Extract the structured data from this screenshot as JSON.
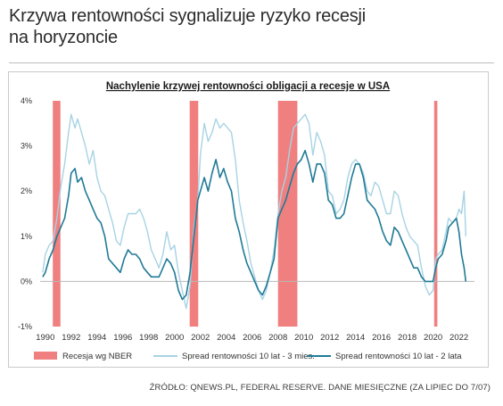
{
  "headline": {
    "line1": "Krzywa rentowności sygnalizuje ryzyko recesji",
    "line2": "na horyzoncie"
  },
  "source": "ŹRÓDŁO: QNEWS.PL, FEDERAL RESERVE. DANE MIESIĘCZNE (ZA LIPIEC DO 7/07)",
  "chart_data": {
    "type": "line",
    "title": "Nachylenie krzywej rentowności obligacji a recesje w USA",
    "xlabel": "",
    "ylabel": "",
    "xlim": [
      1989.6,
      2023.2
    ],
    "ylim": [
      -1,
      4
    ],
    "x_ticks": [
      "1990",
      "1992",
      "1994",
      "1996",
      "1998",
      "2000",
      "2002",
      "2004",
      "2006",
      "2008",
      "2010",
      "2012",
      "2014",
      "2016",
      "2018",
      "2020",
      "2022"
    ],
    "y_ticks": [
      "-1%",
      "0%",
      "1%",
      "2%",
      "3%",
      "4%"
    ],
    "grid": "none",
    "legend_position": "bottom",
    "colors": {
      "recession": "#f08080",
      "spread_3m": "#a7d3e3",
      "spread_2y": "#1f7a96"
    },
    "recessions": [
      {
        "start": 1990.58,
        "end": 1991.17
      },
      {
        "start": 2001.17,
        "end": 2001.83
      },
      {
        "start": 2008.0,
        "end": 2009.5
      },
      {
        "start": 2020.08,
        "end": 2020.33
      }
    ],
    "legend": [
      "Recesja wg NBER",
      "Spread rentowności 10 lat - 3 mies.",
      "Spread rentowności 10 lat - 2 lata"
    ],
    "series": [
      {
        "name": "Spread rentowności 10 lat - 3 mies.",
        "x": [
          1989.8,
          1990.0,
          1990.3,
          1990.6,
          1990.9,
          1991.2,
          1991.5,
          1991.8,
          1992.0,
          1992.3,
          1992.5,
          1992.8,
          1993.1,
          1993.4,
          1993.7,
          1994.0,
          1994.3,
          1994.6,
          1994.9,
          1995.2,
          1995.5,
          1995.8,
          1996.1,
          1996.4,
          1996.7,
          1997.0,
          1997.3,
          1997.6,
          1997.9,
          1998.2,
          1998.5,
          1998.8,
          1999.1,
          1999.4,
          1999.7,
          2000.0,
          2000.3,
          2000.6,
          2000.9,
          2001.2,
          2001.5,
          2001.8,
          2002.0,
          2002.3,
          2002.6,
          2002.9,
          2003.2,
          2003.5,
          2003.8,
          2004.1,
          2004.4,
          2004.7,
          2005.0,
          2005.3,
          2005.6,
          2005.9,
          2006.2,
          2006.5,
          2006.8,
          2007.1,
          2007.4,
          2007.7,
          2008.0,
          2008.3,
          2008.6,
          2008.9,
          2009.2,
          2009.5,
          2009.8,
          2010.1,
          2010.4,
          2010.7,
          2011.0,
          2011.3,
          2011.6,
          2011.9,
          2012.2,
          2012.5,
          2012.8,
          2013.1,
          2013.4,
          2013.7,
          2014.0,
          2014.3,
          2014.6,
          2014.9,
          2015.2,
          2015.5,
          2015.8,
          2016.1,
          2016.4,
          2016.7,
          2017.0,
          2017.3,
          2017.6,
          2017.9,
          2018.2,
          2018.5,
          2018.8,
          2019.1,
          2019.4,
          2019.7,
          2020.0,
          2020.2,
          2020.4,
          2020.7,
          2021.0,
          2021.2,
          2021.5,
          2021.8,
          2022.0,
          2022.2,
          2022.4,
          2022.53
        ],
        "values": [
          0.2,
          0.6,
          0.8,
          0.9,
          1.4,
          2.1,
          2.6,
          3.3,
          3.7,
          3.4,
          3.6,
          3.3,
          3.0,
          2.6,
          2.9,
          2.3,
          2.0,
          1.9,
          1.6,
          1.3,
          0.9,
          0.8,
          1.2,
          1.5,
          1.5,
          1.5,
          1.6,
          1.4,
          1.1,
          0.7,
          0.5,
          0.3,
          0.6,
          1.1,
          0.7,
          0.8,
          0.2,
          -0.2,
          -0.6,
          -0.1,
          1.2,
          1.8,
          2.8,
          3.5,
          3.1,
          3.3,
          3.6,
          3.4,
          3.5,
          3.4,
          3.3,
          2.7,
          1.8,
          1.3,
          0.9,
          0.4,
          0.1,
          -0.2,
          -0.4,
          -0.2,
          0.2,
          0.7,
          1.5,
          2.0,
          2.3,
          2.9,
          3.4,
          3.5,
          3.6,
          3.7,
          3.5,
          2.8,
          3.3,
          3.1,
          2.8,
          2.0,
          1.9,
          1.5,
          1.6,
          1.8,
          2.3,
          2.6,
          2.7,
          2.6,
          2.4,
          2.0,
          1.9,
          2.2,
          2.1,
          1.8,
          1.5,
          1.5,
          2.0,
          1.9,
          1.5,
          1.2,
          1.0,
          0.9,
          0.8,
          0.3,
          -0.1,
          -0.3,
          -0.2,
          0.5,
          0.6,
          0.7,
          1.1,
          1.4,
          1.3,
          1.4,
          1.6,
          1.5,
          2.0,
          1.0
        ]
      },
      {
        "name": "Spread rentowności 10 lat - 2 lata",
        "x": [
          1989.8,
          1990.0,
          1990.3,
          1990.6,
          1990.9,
          1991.2,
          1991.5,
          1991.8,
          1992.0,
          1992.3,
          1992.5,
          1992.8,
          1993.1,
          1993.4,
          1993.7,
          1994.0,
          1994.3,
          1994.6,
          1994.9,
          1995.2,
          1995.5,
          1995.8,
          1996.1,
          1996.4,
          1996.7,
          1997.0,
          1997.3,
          1997.6,
          1997.9,
          1998.2,
          1998.5,
          1998.8,
          1999.1,
          1999.4,
          1999.7,
          2000.0,
          2000.3,
          2000.6,
          2000.9,
          2001.2,
          2001.5,
          2001.8,
          2002.0,
          2002.3,
          2002.6,
          2002.9,
          2003.2,
          2003.5,
          2003.8,
          2004.1,
          2004.4,
          2004.7,
          2005.0,
          2005.3,
          2005.6,
          2005.9,
          2006.2,
          2006.5,
          2006.8,
          2007.1,
          2007.4,
          2007.7,
          2008.0,
          2008.3,
          2008.6,
          2008.9,
          2009.2,
          2009.5,
          2009.8,
          2010.1,
          2010.4,
          2010.7,
          2011.0,
          2011.3,
          2011.6,
          2011.9,
          2012.2,
          2012.5,
          2012.8,
          2013.1,
          2013.4,
          2013.7,
          2014.0,
          2014.3,
          2014.6,
          2014.9,
          2015.2,
          2015.5,
          2015.8,
          2016.1,
          2016.4,
          2016.7,
          2017.0,
          2017.3,
          2017.6,
          2017.9,
          2018.2,
          2018.5,
          2018.8,
          2019.1,
          2019.4,
          2019.7,
          2020.0,
          2020.2,
          2020.4,
          2020.7,
          2021.0,
          2021.2,
          2021.5,
          2021.8,
          2022.0,
          2022.2,
          2022.4,
          2022.53
        ],
        "values": [
          0.1,
          0.2,
          0.5,
          0.7,
          1.0,
          1.2,
          1.4,
          1.9,
          2.4,
          2.5,
          2.2,
          2.3,
          2.0,
          1.8,
          1.6,
          1.4,
          1.3,
          1.0,
          0.5,
          0.4,
          0.3,
          0.2,
          0.5,
          0.7,
          0.6,
          0.6,
          0.5,
          0.3,
          0.2,
          0.1,
          0.1,
          0.1,
          0.3,
          0.5,
          0.4,
          0.2,
          -0.2,
          -0.4,
          -0.3,
          0.2,
          1.0,
          1.8,
          2.0,
          2.3,
          2.0,
          2.4,
          2.7,
          2.3,
          2.5,
          2.2,
          2.0,
          1.4,
          1.1,
          0.7,
          0.4,
          0.2,
          0.0,
          -0.2,
          -0.3,
          -0.1,
          0.2,
          0.5,
          1.4,
          1.6,
          1.8,
          2.1,
          2.4,
          2.6,
          2.7,
          2.9,
          2.6,
          2.2,
          2.6,
          2.6,
          2.4,
          1.8,
          1.7,
          1.4,
          1.4,
          1.5,
          1.9,
          2.3,
          2.6,
          2.6,
          2.3,
          1.8,
          1.7,
          1.6,
          1.4,
          1.1,
          0.9,
          0.8,
          1.2,
          1.1,
          0.9,
          0.7,
          0.5,
          0.3,
          0.3,
          0.1,
          0.0,
          0.0,
          0.0,
          0.3,
          0.5,
          0.6,
          0.9,
          1.2,
          1.3,
          1.4,
          1.1,
          0.6,
          0.3,
          0.0
        ]
      }
    ]
  }
}
